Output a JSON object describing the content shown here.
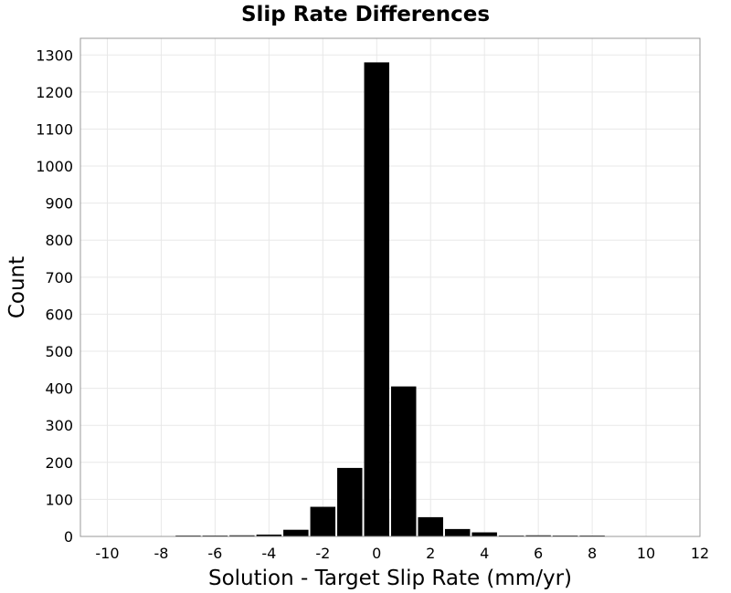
{
  "chart_data": {
    "type": "bar",
    "title": "Slip Rate Differences",
    "xlabel": "Solution - Target Slip Rate (mm/yr)",
    "ylabel": "Count",
    "xlim": [
      -11,
      12
    ],
    "ylim": [
      0,
      1345
    ],
    "x_ticks": [
      -10,
      -8,
      -6,
      -4,
      -2,
      0,
      2,
      4,
      6,
      8,
      10,
      12
    ],
    "y_ticks": [
      0,
      100,
      200,
      300,
      400,
      500,
      600,
      700,
      800,
      900,
      1000,
      1100,
      1200,
      1300
    ],
    "bin_width": 1,
    "grid": true,
    "bar_color": "#000000",
    "bins": [
      {
        "center": -10,
        "value": 0
      },
      {
        "center": -9,
        "value": 0
      },
      {
        "center": -8,
        "value": 0
      },
      {
        "center": -7,
        "value": 1
      },
      {
        "center": -6,
        "value": 2
      },
      {
        "center": -5,
        "value": 3
      },
      {
        "center": -4,
        "value": 5
      },
      {
        "center": -3,
        "value": 18
      },
      {
        "center": -2,
        "value": 80
      },
      {
        "center": -1,
        "value": 185
      },
      {
        "center": 0,
        "value": 1280
      },
      {
        "center": 1,
        "value": 405
      },
      {
        "center": 2,
        "value": 52
      },
      {
        "center": 3,
        "value": 20
      },
      {
        "center": 4,
        "value": 11
      },
      {
        "center": 5,
        "value": 2
      },
      {
        "center": 6,
        "value": 3
      },
      {
        "center": 7,
        "value": 2
      },
      {
        "center": 8,
        "value": 1
      },
      {
        "center": 9,
        "value": 0
      },
      {
        "center": 10,
        "value": 0
      },
      {
        "center": 11,
        "value": 0
      }
    ]
  }
}
